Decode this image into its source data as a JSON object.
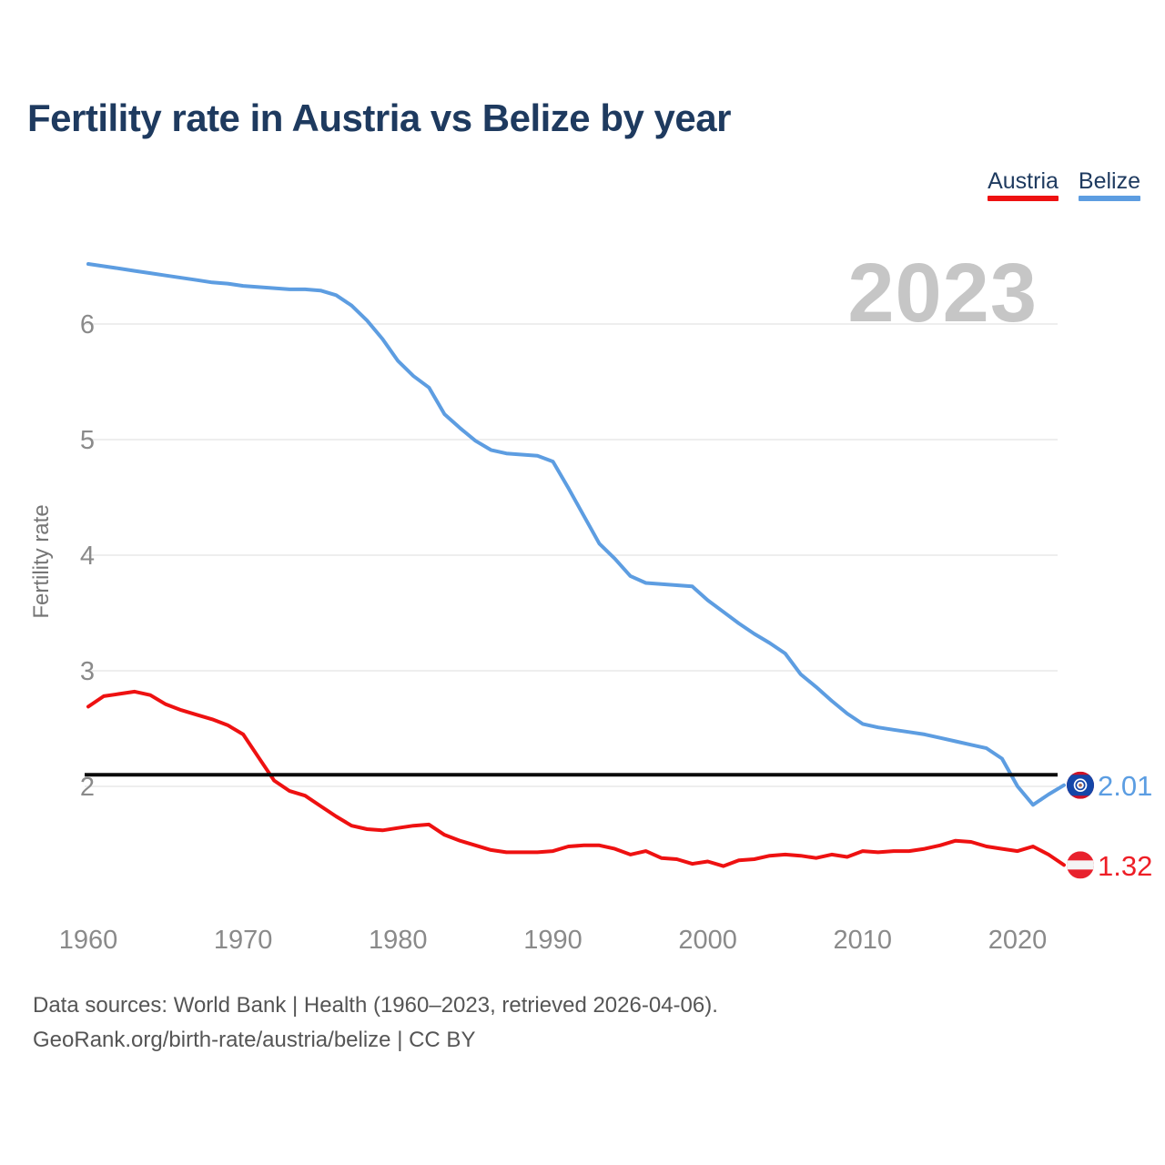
{
  "header": {
    "title": "Fertility rate in Austria vs Belize by year"
  },
  "legend": [
    {
      "label": "Austria",
      "color": "#ee1111"
    },
    {
      "label": "Belize",
      "color": "#5d9de1"
    }
  ],
  "watermark_year": "2023",
  "end_labels": [
    {
      "series": "Belize",
      "value": "2.01",
      "color": "#5b9de2"
    },
    {
      "series": "Austria",
      "value": "1.32",
      "color": "#ee1e26"
    }
  ],
  "icons": {
    "belize_flag": {
      "blue": "#1546a8",
      "red": "#ce1126",
      "white": "#ffffff",
      "emblem": "#a56a55"
    },
    "austria_flag": {
      "red": "#e8212d",
      "white": "#f4f4f4"
    }
  },
  "footer": {
    "line1": "Data sources: World Bank | Health (1960–2023, retrieved 2026-04-06).",
    "line2": "GeoRank.org/birth-rate/austria/belize | CC BY"
  },
  "chart_data": {
    "type": "line",
    "title": "Fertility rate in Austria vs Belize by year",
    "xlabel": "",
    "ylabel": "Fertility rate",
    "grid": true,
    "legend_position": "top-right",
    "x_ticks": [
      1960,
      1970,
      1980,
      1990,
      2000,
      2010,
      2020
    ],
    "y_ticks": [
      2,
      3,
      4,
      5,
      6
    ],
    "ylim": [
      1.1,
      6.7
    ],
    "reference_line": {
      "value": 2.1,
      "color": "#0b0b0b"
    },
    "x": [
      1960,
      1961,
      1962,
      1963,
      1964,
      1965,
      1966,
      1967,
      1968,
      1969,
      1970,
      1971,
      1972,
      1973,
      1974,
      1975,
      1976,
      1977,
      1978,
      1979,
      1980,
      1981,
      1982,
      1983,
      1984,
      1985,
      1986,
      1987,
      1988,
      1989,
      1990,
      1991,
      1992,
      1993,
      1994,
      1995,
      1996,
      1997,
      1998,
      1999,
      2000,
      2001,
      2002,
      2003,
      2004,
      2005,
      2006,
      2007,
      2008,
      2009,
      2010,
      2011,
      2012,
      2013,
      2014,
      2015,
      2016,
      2017,
      2018,
      2019,
      2020,
      2021,
      2022,
      2023
    ],
    "series": [
      {
        "name": "Austria",
        "color": "#ee1111",
        "values": [
          2.69,
          2.78,
          2.8,
          2.82,
          2.79,
          2.71,
          2.66,
          2.62,
          2.58,
          2.53,
          2.45,
          2.25,
          2.05,
          1.96,
          1.92,
          1.83,
          1.74,
          1.66,
          1.63,
          1.62,
          1.64,
          1.66,
          1.67,
          1.58,
          1.53,
          1.49,
          1.45,
          1.43,
          1.43,
          1.43,
          1.44,
          1.48,
          1.49,
          1.49,
          1.46,
          1.41,
          1.44,
          1.38,
          1.37,
          1.33,
          1.35,
          1.31,
          1.36,
          1.37,
          1.4,
          1.41,
          1.4,
          1.38,
          1.41,
          1.39,
          1.44,
          1.43,
          1.44,
          1.44,
          1.46,
          1.49,
          1.53,
          1.52,
          1.48,
          1.46,
          1.44,
          1.48,
          1.41,
          1.32
        ]
      },
      {
        "name": "Belize",
        "color": "#5d9de1",
        "values": [
          6.52,
          6.5,
          6.48,
          6.46,
          6.44,
          6.42,
          6.4,
          6.38,
          6.36,
          6.35,
          6.33,
          6.32,
          6.31,
          6.3,
          6.3,
          6.29,
          6.25,
          6.16,
          6.03,
          5.87,
          5.68,
          5.55,
          5.45,
          5.22,
          5.1,
          4.99,
          4.91,
          4.88,
          4.87,
          4.86,
          4.81,
          4.58,
          4.34,
          4.1,
          3.97,
          3.82,
          3.76,
          3.75,
          3.74,
          3.73,
          3.61,
          3.51,
          3.41,
          3.32,
          3.24,
          3.15,
          2.97,
          2.86,
          2.74,
          2.63,
          2.54,
          2.51,
          2.49,
          2.47,
          2.45,
          2.42,
          2.39,
          2.36,
          2.33,
          2.24,
          2.0,
          1.84,
          1.93,
          2.01
        ]
      }
    ]
  }
}
